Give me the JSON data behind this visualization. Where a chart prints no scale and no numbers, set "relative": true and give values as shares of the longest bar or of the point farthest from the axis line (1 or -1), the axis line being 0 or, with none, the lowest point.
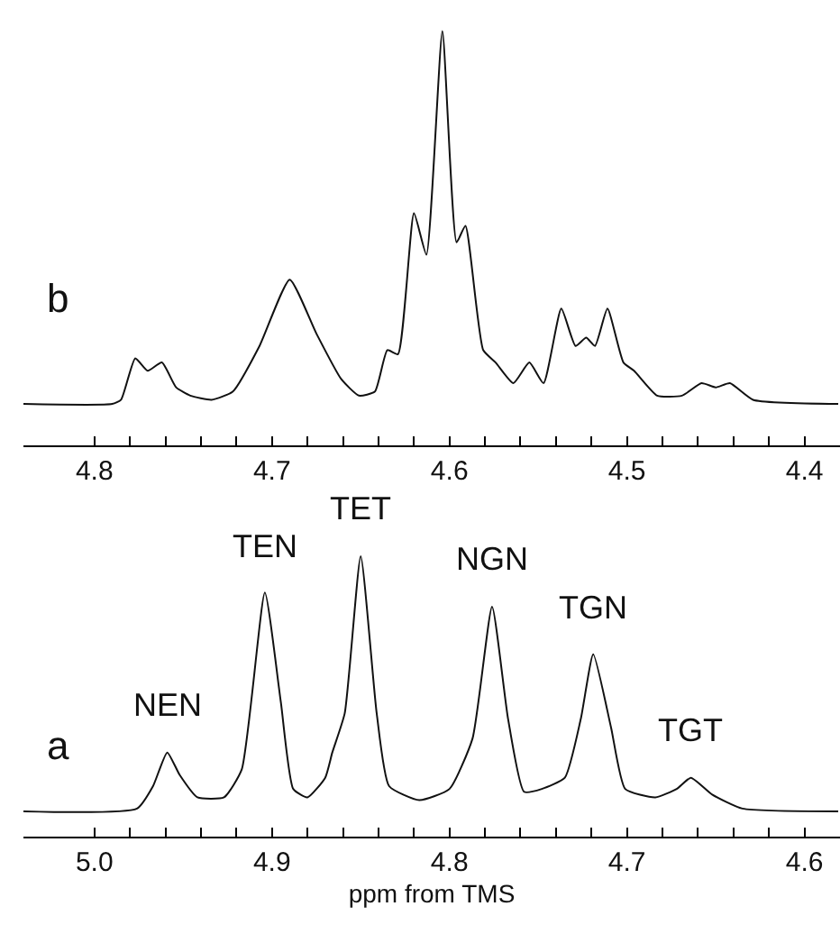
{
  "chart_data": [
    {
      "type": "line",
      "relative": true,
      "color": "#111111",
      "x": [
        4.84,
        4.79,
        4.785,
        4.777,
        4.77,
        4.762,
        4.754,
        4.746,
        4.734,
        4.722,
        4.707,
        4.69,
        4.675,
        4.661,
        4.651,
        4.642,
        4.635,
        4.629,
        4.62,
        4.613,
        4.604,
        4.596,
        4.591,
        4.581,
        4.574,
        4.564,
        4.555,
        4.547,
        4.537,
        4.529,
        4.523,
        4.518,
        4.511,
        4.502,
        4.496,
        4.483,
        4.469,
        4.458,
        4.45,
        4.442,
        4.429,
        4.381
      ],
      "values": [
        0.1,
        0.1,
        0.11,
        0.21,
        0.18,
        0.2,
        0.14,
        0.12,
        0.11,
        0.13,
        0.24,
        0.4,
        0.27,
        0.16,
        0.12,
        0.13,
        0.23,
        0.22,
        0.56,
        0.46,
        1.0,
        0.49,
        0.53,
        0.23,
        0.2,
        0.15,
        0.2,
        0.15,
        0.33,
        0.24,
        0.26,
        0.24,
        0.33,
        0.2,
        0.18,
        0.12,
        0.12,
        0.15,
        0.14,
        0.15,
        0.11,
        0.1
      ],
      "xlim": [
        4.84,
        4.38
      ],
      "xticks": [
        4.8,
        {
          "value": 4.78,
          "label": null
        },
        {
          "value": 4.76,
          "label": null
        },
        {
          "value": 4.74,
          "label": null
        },
        {
          "value": 4.72,
          "label": null
        },
        4.7,
        {
          "value": 4.68,
          "label": null
        },
        {
          "value": 4.66,
          "label": null
        },
        {
          "value": 4.64,
          "label": null
        },
        {
          "value": 4.62,
          "label": null
        },
        4.6,
        {
          "value": 4.58,
          "label": null
        },
        {
          "value": 4.56,
          "label": null
        },
        {
          "value": 4.54,
          "label": null
        },
        {
          "value": 4.52,
          "label": null
        },
        4.5,
        {
          "value": 4.48,
          "label": null
        },
        {
          "value": 4.46,
          "label": null
        },
        {
          "value": 4.44,
          "label": null
        },
        {
          "value": 4.42,
          "label": null
        },
        4.4
      ],
      "tick_labels": "x",
      "annotations": [
        "b"
      ]
    },
    {
      "type": "line",
      "relative": true,
      "color": "#111111",
      "x": [
        5.04,
        4.976,
        4.967,
        4.959,
        4.952,
        4.942,
        4.927,
        4.917,
        4.904,
        4.895,
        4.888,
        4.88,
        4.87,
        4.866,
        4.859,
        4.85,
        4.841,
        4.834,
        4.817,
        4.8,
        4.787,
        4.776,
        4.767,
        4.758,
        4.748,
        4.735,
        4.726,
        4.719,
        4.709,
        4.701,
        4.684,
        4.672,
        4.664,
        4.652,
        4.635,
        4.581
      ],
      "values": [
        0.09,
        0.1,
        0.18,
        0.3,
        0.22,
        0.14,
        0.14,
        0.24,
        0.87,
        0.48,
        0.17,
        0.14,
        0.21,
        0.3,
        0.44,
        1.0,
        0.44,
        0.18,
        0.13,
        0.17,
        0.35,
        0.82,
        0.42,
        0.16,
        0.17,
        0.21,
        0.42,
        0.65,
        0.39,
        0.17,
        0.14,
        0.17,
        0.21,
        0.15,
        0.1,
        0.09
      ],
      "xlim": [
        5.04,
        4.58
      ],
      "xticks": [
        {
          "value": 5.0,
          "label": "5.0"
        },
        {
          "value": 4.98,
          "label": null
        },
        {
          "value": 4.96,
          "label": null
        },
        {
          "value": 4.94,
          "label": null
        },
        {
          "value": 4.92,
          "label": null
        },
        4.9,
        {
          "value": 4.88,
          "label": null
        },
        {
          "value": 4.86,
          "label": null
        },
        {
          "value": 4.84,
          "label": null
        },
        {
          "value": 4.82,
          "label": null
        },
        4.8,
        {
          "value": 4.78,
          "label": null
        },
        {
          "value": 4.76,
          "label": null
        },
        {
          "value": 4.74,
          "label": null
        },
        {
          "value": 4.72,
          "label": null
        },
        4.7,
        {
          "value": 4.68,
          "label": null
        },
        {
          "value": 4.66,
          "label": null
        },
        {
          "value": 4.64,
          "label": null
        },
        {
          "value": 4.62,
          "label": null
        },
        4.6
      ],
      "xlabel": "ppm from TMS",
      "tick_labels": "x",
      "annotations": [
        "a",
        {
          "text": "NEN",
          "x": 4.959,
          "y": 0.3
        },
        {
          "text": "TEN",
          "x": 4.904,
          "y": 0.87
        },
        {
          "text": "TET",
          "x": 4.85,
          "y": 1.0
        },
        {
          "text": "NGN",
          "x": 4.776,
          "y": 0.82
        },
        {
          "text": "TGN",
          "x": 4.719,
          "y": 0.65
        },
        {
          "text": "TGT",
          "x": 4.664,
          "y": 0.21
        }
      ]
    }
  ]
}
